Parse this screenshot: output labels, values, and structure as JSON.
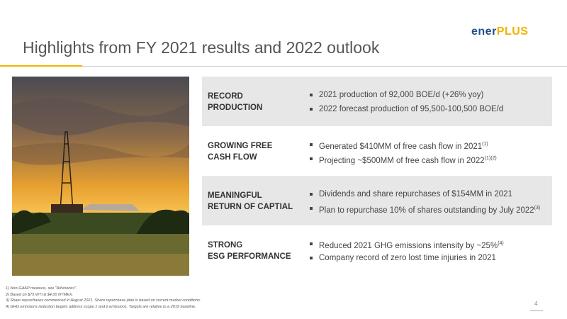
{
  "logo": {
    "ener": "ener",
    "plus": "PLUS"
  },
  "header": {
    "title": "Highlights from FY 2021 results and 2022 outlook"
  },
  "rows": [
    {
      "label": [
        "RECORD",
        "PRODUCTION"
      ],
      "bullets": [
        {
          "text": "2021 production of 92,000 BOE/d (+26% yoy)"
        },
        {
          "text": "2022 forecast production of 95,500-100,500 BOE/d"
        }
      ]
    },
    {
      "label": [
        "GROWING FREE",
        "CASH FLOW"
      ],
      "bullets": [
        {
          "text": "Generated $410MM of free cash flow in 2021",
          "sup": "(1)"
        },
        {
          "text": "Projecting ~$500MM of free cash flow in 2022",
          "sup": "(1)(2)"
        }
      ]
    },
    {
      "label": [
        "MEANINGFUL",
        "RETURN OF CAPTIAL"
      ],
      "bullets": [
        {
          "text": "Dividends and share repurchases of $154MM in 2021"
        },
        {
          "text": "Plan to repurchase 10% of shares outstanding by July 2022",
          "sup": "(3)"
        }
      ]
    },
    {
      "label": [
        "STRONG",
        "ESG PERFORMANCE"
      ],
      "bullets": [
        {
          "text": "Reduced 2021 GHG emissions intensity by ~25%",
          "sup": "(4)"
        },
        {
          "text": "Company record of zero lost time injuries in 2021"
        }
      ]
    }
  ],
  "footnotes": [
    "1)  Non-GAAP measure, see \"Advisories\".",
    "2)  Based on $75 WTI & $4.00 NYMEX.",
    "3)  Share repurchases commenced in August 2021.  Share repurchase plan is based on current market conditions.",
    "4)  GHG emissions reduction targets address scope 1 and 2 emissions. Targets are relative to a 2019 baseline."
  ],
  "page_number": "4"
}
